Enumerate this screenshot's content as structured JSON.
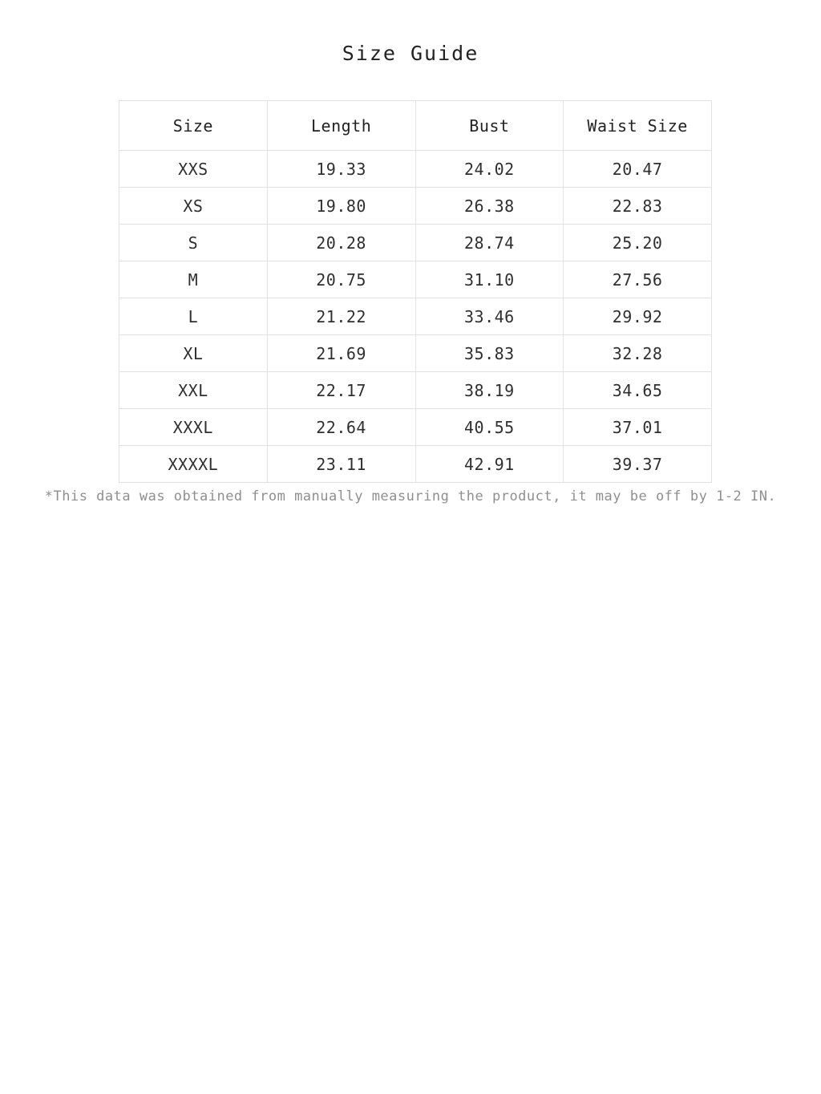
{
  "page": {
    "title": "Size Guide",
    "footnote": "*This data was obtained from manually measuring the product, it may be off by 1-2 IN."
  },
  "table": {
    "columns": [
      "Size",
      "Length",
      "Bust",
      "Waist Size"
    ],
    "rows": [
      [
        "XXS",
        "19.33",
        "24.02",
        "20.47"
      ],
      [
        "XS",
        "19.80",
        "26.38",
        "22.83"
      ],
      [
        "S",
        "20.28",
        "28.74",
        "25.20"
      ],
      [
        "M",
        "20.75",
        "31.10",
        "27.56"
      ],
      [
        "L",
        "21.22",
        "33.46",
        "29.92"
      ],
      [
        "XL",
        "21.69",
        "35.83",
        "32.28"
      ],
      [
        "XXL",
        "22.17",
        "38.19",
        "34.65"
      ],
      [
        "XXXL",
        "22.64",
        "40.55",
        "37.01"
      ],
      [
        "XXXXL",
        "23.11",
        "42.91",
        "39.37"
      ]
    ]
  },
  "colors": {
    "border": "#e1e1e1",
    "text": "#2f2f2f",
    "footnote_text": "#8f8f8f",
    "background": "#ffffff"
  }
}
